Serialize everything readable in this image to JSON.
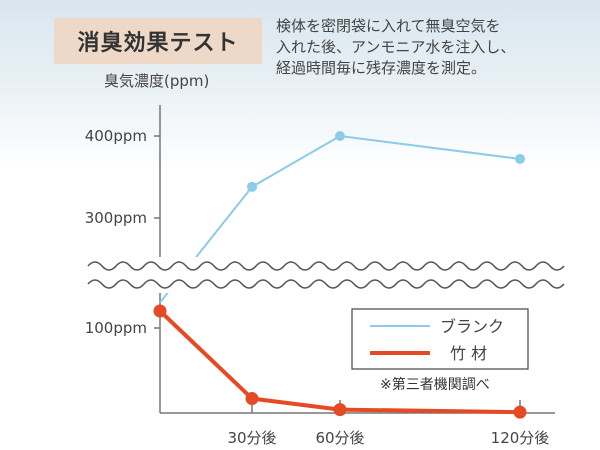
{
  "header": {
    "title": "消臭効果テスト",
    "description_lines": [
      "検体を密閉袋に入れて無臭空気を",
      "入れた後、アンモニア水を注入し、",
      "経過時間毎に残存濃度を測定。"
    ]
  },
  "chart_data": {
    "type": "line",
    "ylabel": "臭気濃度(ppm)",
    "xlabel": "",
    "x_tick_labels": [
      "30分後",
      "60分後",
      "120分後"
    ],
    "y_tick_labels": [
      "400ppm",
      "300ppm",
      "100ppm"
    ],
    "axis_break": "between 100ppm and 300ppm",
    "series": [
      {
        "name": "ブランク",
        "color": "#8ccbe9",
        "points": [
          {
            "x": 0,
            "y": 130
          },
          {
            "x": 30,
            "y": 338
          },
          {
            "x": 60,
            "y": 400
          },
          {
            "x": 120,
            "y": 372
          }
        ]
      },
      {
        "name": "竹 材",
        "color": "#e64a25",
        "points": [
          {
            "x": 0,
            "y": 120
          },
          {
            "x": 30,
            "y": 17
          },
          {
            "x": 60,
            "y": 4
          },
          {
            "x": 120,
            "y": 1
          }
        ]
      }
    ],
    "legend_position": "right, lower-middle",
    "note": "※第三者機関調べ",
    "grid": false
  }
}
